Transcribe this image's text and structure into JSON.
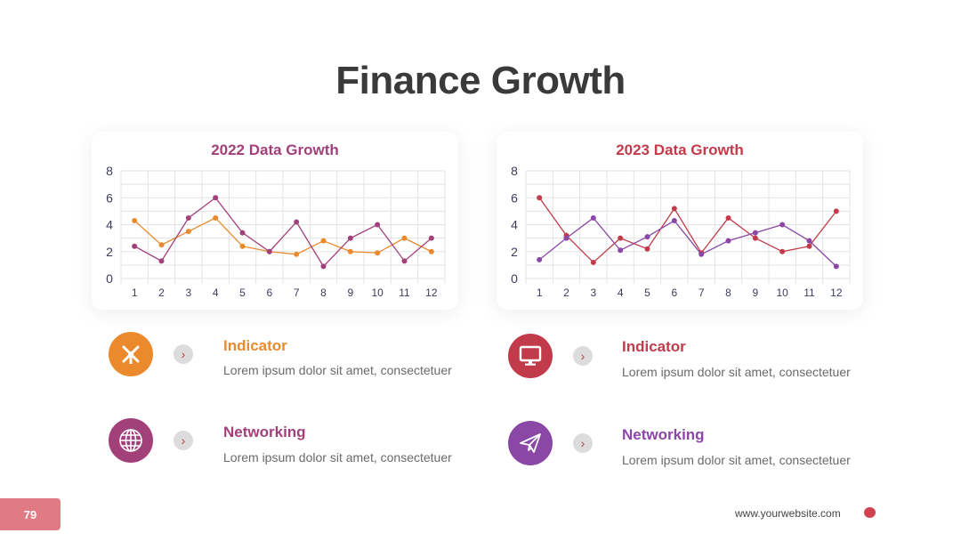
{
  "title": "Finance Growth",
  "colors": {
    "orange": "#ea8a2c",
    "purple": "#a2407a",
    "red": "#c23b4b",
    "violet": "#8a47a6",
    "grid": "#e3e3e3",
    "badge": "#e07b86"
  },
  "chart_data": [
    {
      "type": "line",
      "title": "2022 Data Growth",
      "title_color": "#a2407a",
      "categories": [
        "1",
        "2",
        "3",
        "4",
        "5",
        "6",
        "7",
        "8",
        "9",
        "10",
        "11",
        "12"
      ],
      "ylim": [
        0,
        8
      ],
      "yticks": [
        "0",
        "2",
        "4",
        "6",
        "8"
      ],
      "grid": true,
      "series": [
        {
          "color": "#ea8a2c",
          "values": [
            4.3,
            2.5,
            3.5,
            4.5,
            2.4,
            2.0,
            1.8,
            2.8,
            2.0,
            1.9,
            3.0,
            2.0
          ]
        },
        {
          "color": "#a2407a",
          "values": [
            2.4,
            1.3,
            4.5,
            6.0,
            3.4,
            2.0,
            4.2,
            0.9,
            3.0,
            4.0,
            1.3,
            3.0
          ]
        }
      ]
    },
    {
      "type": "line",
      "title": "2023 Data Growth",
      "title_color": "#c23b4b",
      "categories": [
        "1",
        "2",
        "3",
        "4",
        "5",
        "6",
        "7",
        "8",
        "9",
        "10",
        "11",
        "12"
      ],
      "ylim": [
        0,
        8
      ],
      "yticks": [
        "0",
        "2",
        "4",
        "6",
        "8"
      ],
      "grid": true,
      "series": [
        {
          "color": "#c23b4b",
          "values": [
            6.0,
            3.2,
            1.2,
            3.0,
            2.2,
            5.2,
            1.9,
            4.5,
            3.0,
            2.0,
            2.4,
            5.0
          ]
        },
        {
          "color": "#8a47a6",
          "values": [
            1.4,
            3.0,
            4.5,
            2.1,
            3.1,
            4.3,
            1.8,
            2.8,
            3.4,
            4.0,
            2.8,
            0.9
          ]
        }
      ]
    }
  ],
  "items": [
    {
      "title": "Indicator",
      "desc": "Lorem ipsum dolor sit amet, consectetuer",
      "icon": "windmill-icon",
      "color": "#ea8a2c"
    },
    {
      "title": "Networking",
      "desc": "Lorem ipsum dolor sit amet, consectetuer",
      "icon": "globe-icon",
      "color": "#a2407a"
    },
    {
      "title": "Indicator",
      "desc": "Lorem ipsum dolor sit amet, consectetuer",
      "icon": "monitor-icon",
      "color": "#c23b4b"
    },
    {
      "title": "Networking",
      "desc": "Lorem ipsum dolor sit amet, consectetuer",
      "icon": "paper-plane-icon",
      "color": "#8a47a6"
    }
  ],
  "footer": {
    "page_number": "79",
    "website": "www.yourwebsite.com"
  }
}
